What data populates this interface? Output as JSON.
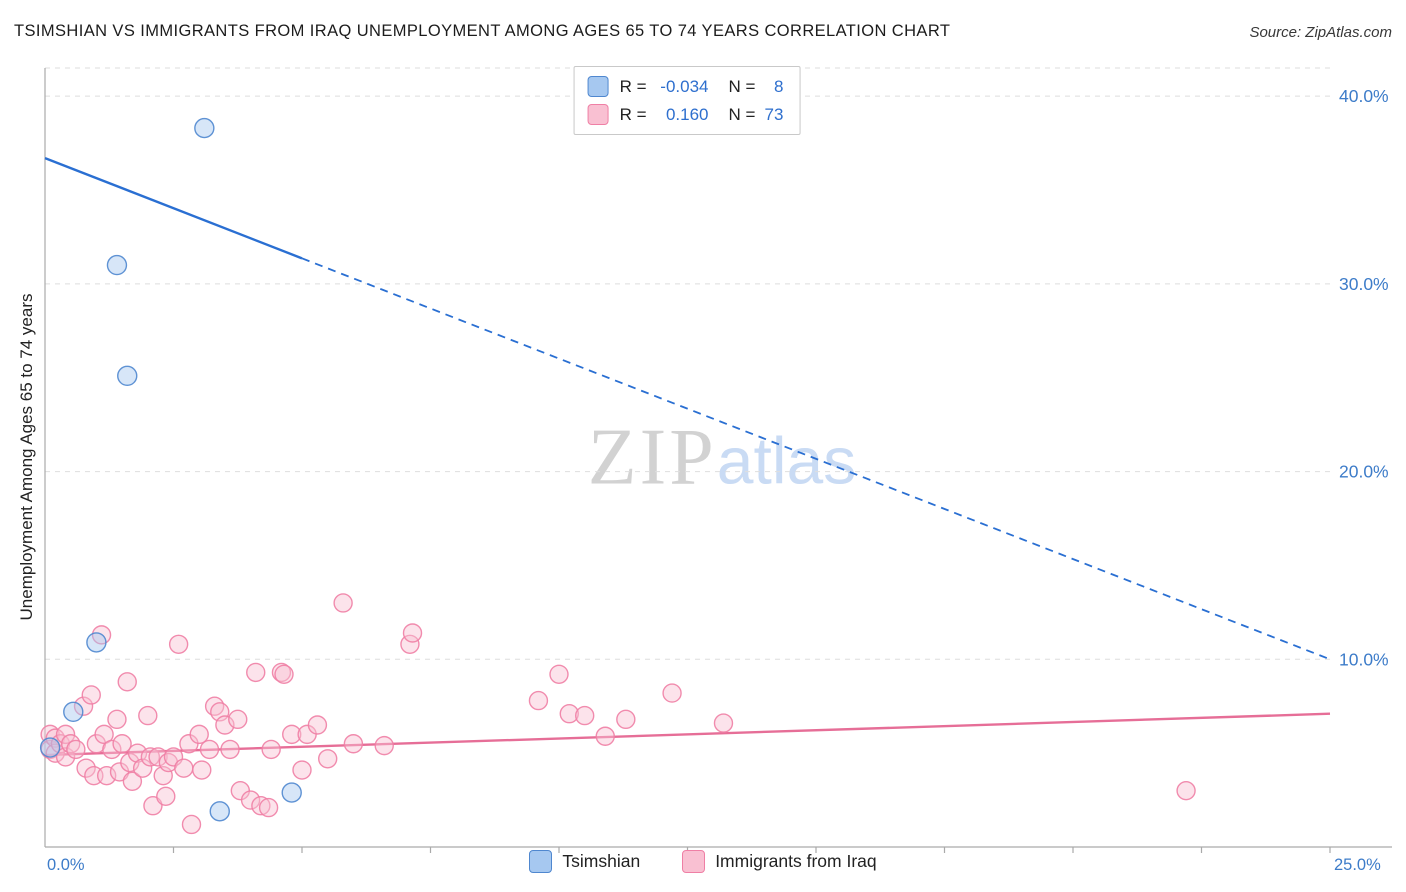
{
  "header": {
    "title": "TSIMSHIAN VS IMMIGRANTS FROM IRAQ UNEMPLOYMENT AMONG AGES 65 TO 74 YEARS CORRELATION CHART",
    "source": "Source: ZipAtlas.com"
  },
  "watermark": {
    "part1": "ZIP",
    "part2": "atlas"
  },
  "stats_legend": {
    "rows": [
      {
        "r_label": "R =",
        "r_value": "-0.034",
        "n_label": "N =",
        "n_value": "8"
      },
      {
        "r_label": "R =",
        "r_value": "0.160",
        "n_label": "N =",
        "n_value": "73"
      }
    ]
  },
  "colors": {
    "axis_tick_label": "#3d7cc9",
    "stat_value": "#2e6fce",
    "grid_line": "#dedede",
    "spine": "#aaaaaa",
    "watermark_zip": "#d2d2d2",
    "watermark_atlas": "#c9dbf4",
    "title_text": "#1c1c1c"
  },
  "chart_data": {
    "type": "scatter",
    "title": "TSIMSHIAN VS IMMIGRANTS FROM IRAQ UNEMPLOYMENT AMONG AGES 65 TO 74 YEARS CORRELATION CHART",
    "xlabel": "",
    "ylabel": "Unemployment Among Ages 65 to 74 years",
    "xlim": [
      0,
      0.25
    ],
    "ylim": [
      0,
      0.415
    ],
    "grid": "horizontal-dashed",
    "legend_position": "bottom-center",
    "x_tick_labels": [
      {
        "value": 0.0,
        "label": "0.0%"
      },
      {
        "value": 0.25,
        "label": "25.0%"
      }
    ],
    "y_tick_labels": [
      {
        "value": 0.4,
        "label": "40.0%"
      },
      {
        "value": 0.3,
        "label": "30.0%"
      },
      {
        "value": 0.2,
        "label": "20.0%"
      },
      {
        "value": 0.1,
        "label": "10.0%"
      }
    ],
    "x_minor_tick_step": 0.025,
    "series": [
      {
        "name": "Tsimshian",
        "R": -0.034,
        "N": 8,
        "fill": "#a6c8f0",
        "stroke": "#4f87cf",
        "radius": 9.5,
        "points": [
          [
            0.031,
            0.383
          ],
          [
            0.014,
            0.31
          ],
          [
            0.016,
            0.251
          ],
          [
            0.01,
            0.109
          ],
          [
            0.0055,
            0.072
          ],
          [
            0.001,
            0.053
          ],
          [
            0.034,
            0.019
          ],
          [
            0.048,
            0.029
          ]
        ]
      },
      {
        "name": "Immigrants from Iraq",
        "R": 0.16,
        "N": 73,
        "fill": "#f9c0d2",
        "stroke": "#ef7fa5",
        "radius": 9,
        "points": [
          [
            0.001,
            0.06
          ],
          [
            0.001,
            0.052
          ],
          [
            0.002,
            0.058
          ],
          [
            0.002,
            0.05
          ],
          [
            0.003,
            0.055
          ],
          [
            0.004,
            0.048
          ],
          [
            0.004,
            0.06
          ],
          [
            0.005,
            0.055
          ],
          [
            0.006,
            0.052
          ],
          [
            0.0075,
            0.075
          ],
          [
            0.008,
            0.042
          ],
          [
            0.009,
            0.081
          ],
          [
            0.0095,
            0.038
          ],
          [
            0.01,
            0.055
          ],
          [
            0.011,
            0.113
          ],
          [
            0.0115,
            0.06
          ],
          [
            0.012,
            0.038
          ],
          [
            0.013,
            0.052
          ],
          [
            0.014,
            0.068
          ],
          [
            0.0145,
            0.04
          ],
          [
            0.015,
            0.055
          ],
          [
            0.016,
            0.088
          ],
          [
            0.0165,
            0.045
          ],
          [
            0.017,
            0.035
          ],
          [
            0.018,
            0.05
          ],
          [
            0.019,
            0.042
          ],
          [
            0.02,
            0.07
          ],
          [
            0.0205,
            0.048
          ],
          [
            0.021,
            0.022
          ],
          [
            0.022,
            0.048
          ],
          [
            0.023,
            0.038
          ],
          [
            0.0235,
            0.027
          ],
          [
            0.024,
            0.045
          ],
          [
            0.025,
            0.048
          ],
          [
            0.026,
            0.108
          ],
          [
            0.027,
            0.042
          ],
          [
            0.028,
            0.055
          ],
          [
            0.0285,
            0.012
          ],
          [
            0.03,
            0.06
          ],
          [
            0.0305,
            0.041
          ],
          [
            0.032,
            0.052
          ],
          [
            0.033,
            0.075
          ],
          [
            0.034,
            0.072
          ],
          [
            0.035,
            0.065
          ],
          [
            0.036,
            0.052
          ],
          [
            0.0375,
            0.068
          ],
          [
            0.038,
            0.03
          ],
          [
            0.04,
            0.025
          ],
          [
            0.041,
            0.093
          ],
          [
            0.042,
            0.022
          ],
          [
            0.0435,
            0.021
          ],
          [
            0.044,
            0.052
          ],
          [
            0.046,
            0.093
          ],
          [
            0.0465,
            0.092
          ],
          [
            0.048,
            0.06
          ],
          [
            0.05,
            0.041
          ],
          [
            0.051,
            0.06
          ],
          [
            0.053,
            0.065
          ],
          [
            0.055,
            0.047
          ],
          [
            0.058,
            0.13
          ],
          [
            0.06,
            0.055
          ],
          [
            0.066,
            0.054
          ],
          [
            0.071,
            0.108
          ],
          [
            0.0715,
            0.114
          ],
          [
            0.096,
            0.078
          ],
          [
            0.1,
            0.092
          ],
          [
            0.102,
            0.071
          ],
          [
            0.105,
            0.07
          ],
          [
            0.109,
            0.059
          ],
          [
            0.113,
            0.068
          ],
          [
            0.122,
            0.082
          ],
          [
            0.132,
            0.066
          ],
          [
            0.222,
            0.03
          ]
        ]
      }
    ],
    "trend_lines": [
      {
        "series": "Tsimshian",
        "color": "#2a6fd2",
        "start": [
          0,
          0.367
        ],
        "end": [
          0.25,
          0.1
        ],
        "solid_until": 0.05
      },
      {
        "series": "Immigrants from Iraq",
        "color": "#e66e97",
        "start": [
          0,
          0.049
        ],
        "end": [
          0.25,
          0.071
        ],
        "solid_until": 0.25
      }
    ]
  }
}
